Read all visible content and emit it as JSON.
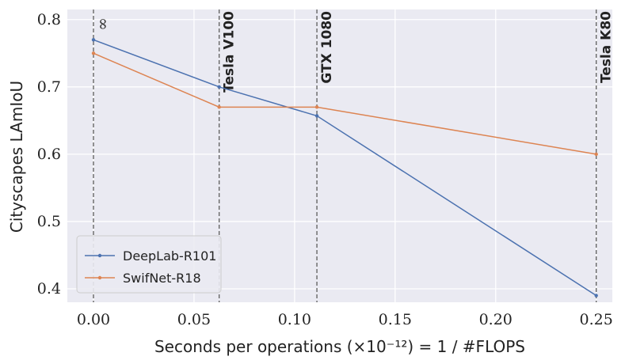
{
  "chart_data": {
    "type": "line",
    "title": "",
    "xlabel": "Seconds per operations (×10⁻¹²) = 1 / #FLOPS",
    "ylabel": "Cityscapes LAmIoU",
    "xlim": [
      -0.013,
      0.258
    ],
    "ylim": [
      0.38,
      0.815
    ],
    "xticks": [
      0.0,
      0.05,
      0.1,
      0.15,
      0.2,
      0.25
    ],
    "xtick_labels": [
      "0.00",
      "0.05",
      "0.10",
      "0.15",
      "0.20",
      "0.25"
    ],
    "yticks": [
      0.4,
      0.5,
      0.6,
      0.7,
      0.8
    ],
    "ytick_labels": [
      "0.4",
      "0.5",
      "0.6",
      "0.7",
      "0.8"
    ],
    "grid": true,
    "legend_position": "lower-left",
    "series": [
      {
        "name": "DeepLab-R101",
        "color": "#4c72b0",
        "x": [
          0.0,
          0.0625,
          0.1111,
          0.25
        ],
        "y": [
          0.77,
          0.7,
          0.657,
          0.39
        ]
      },
      {
        "name": "SwifNet-R18",
        "color": "#dd8452",
        "x": [
          0.0,
          0.0625,
          0.1111,
          0.25
        ],
        "y": [
          0.75,
          0.67,
          0.67,
          0.6
        ]
      }
    ],
    "vertical_markers": [
      {
        "x": 0.0,
        "label": "∞"
      },
      {
        "x": 0.0625,
        "label": "Tesla V100"
      },
      {
        "x": 0.1111,
        "label": "GTX 1080"
      },
      {
        "x": 0.25,
        "label": "Tesla K80"
      }
    ]
  }
}
